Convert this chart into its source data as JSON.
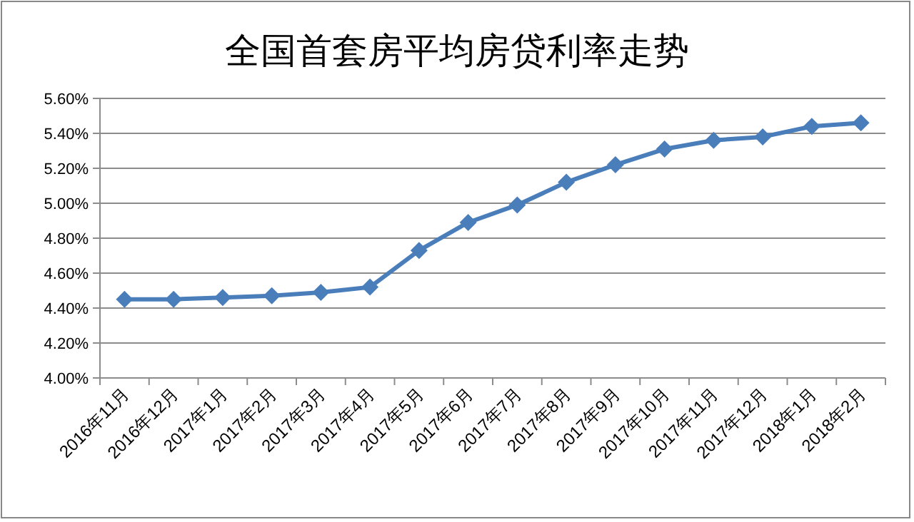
{
  "chart_data": {
    "type": "line",
    "title": "全国首套房平均房贷利率走势",
    "categories": [
      "2016年11月",
      "2016年12月",
      "2017年1月",
      "2017年2月",
      "2017年3月",
      "2017年4月",
      "2017年5月",
      "2017年6月",
      "2017年7月",
      "2017年8月",
      "2017年9月",
      "2017年10月",
      "2017年11月",
      "2017年12月",
      "2018年1月",
      "2018年2月"
    ],
    "series": [
      {
        "color": "#4a7ebb",
        "values": [
          4.45,
          4.45,
          4.46,
          4.47,
          4.49,
          4.52,
          4.73,
          4.89,
          4.99,
          5.12,
          5.22,
          5.31,
          5.36,
          5.38,
          5.44,
          5.46
        ]
      }
    ],
    "ylim": [
      4.0,
      5.6
    ],
    "yticks": [
      {
        "value": 4.0,
        "label": "4.00%"
      },
      {
        "value": 4.2,
        "label": "4.20%"
      },
      {
        "value": 4.4,
        "label": "4.40%"
      },
      {
        "value": 4.6,
        "label": "4.60%"
      },
      {
        "value": 4.8,
        "label": "4.80%"
      },
      {
        "value": 5.0,
        "label": "5.00%"
      },
      {
        "value": 5.2,
        "label": "5.20%"
      },
      {
        "value": 5.4,
        "label": "5.40%"
      },
      {
        "value": 5.6,
        "label": "5.60%"
      }
    ],
    "grid": "y",
    "marker": "diamond",
    "line_style": "solid"
  }
}
